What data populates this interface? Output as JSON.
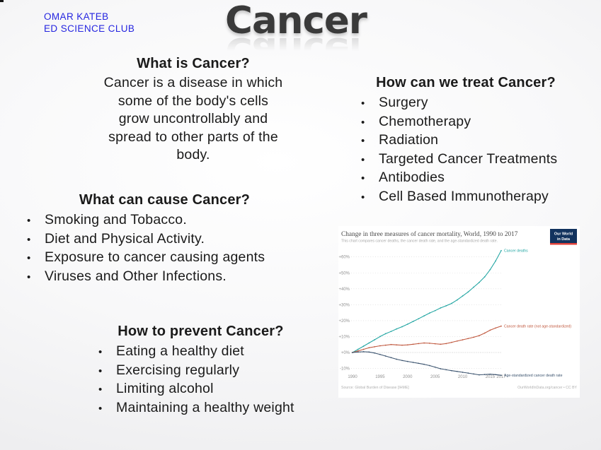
{
  "slide": {
    "club_line1": "OMAR KATEB",
    "club_line2": "ED SCIENCE CLUB",
    "title": "Cancer"
  },
  "sections": {
    "what_is": {
      "heading": "What is Cancer?",
      "body_lines": [
        "Cancer is a disease in which",
        "some of the body's cells",
        "grow uncontrollably and",
        "spread to other parts of the",
        "body."
      ]
    },
    "treat": {
      "heading": "How can we treat Cancer?",
      "items": [
        "Surgery",
        "Chemotherapy",
        "Radiation",
        "Targeted Cancer Treatments",
        "Antibodies",
        "Cell Based Immunotherapy"
      ]
    },
    "cause": {
      "heading": "What can cause Cancer?",
      "items": [
        "Smoking and Tobacco.",
        "Diet and Physical Activity.",
        "Exposure to cancer causing agents",
        "Viruses and Other Infections."
      ]
    },
    "prevent": {
      "heading": "How to prevent Cancer?",
      "items": [
        "Eating a healthy diet",
        "Exercising regularly",
        "Limiting alcohol",
        "Maintaining a healthy weight"
      ]
    }
  },
  "chart_data": {
    "type": "line",
    "title": "Change in three measures of cancer mortality, World, 1990 to 2017",
    "subtitle": "This chart compares cancer deaths, the cancer death rate, and the age-standardized death rate.",
    "logo": {
      "line1": "Our World",
      "line2": "in Data",
      "bg_color": "#12335e",
      "stripe_color": "#e0423a"
    },
    "x": [
      1990,
      1991,
      1992,
      1993,
      1994,
      1995,
      1996,
      1997,
      1998,
      1999,
      2000,
      2001,
      2002,
      2003,
      2004,
      2005,
      2006,
      2007,
      2008,
      2009,
      2010,
      2011,
      2012,
      2013,
      2014,
      2015,
      2016,
      2017
    ],
    "series": [
      {
        "name": "Cancer deaths",
        "color": "#21a5a2",
        "values": [
          0,
          2,
          4,
          6,
          8,
          10,
          11.8,
          13.2,
          14.8,
          16.2,
          17.8,
          19.5,
          21.2,
          23,
          24.8,
          26.3,
          28,
          29.3,
          30.8,
          33,
          35.5,
          38,
          41,
          44,
          47.5,
          52,
          57.5,
          64
        ]
      },
      {
        "name": "Cancer death rate (not age-standardized)",
        "color": "#c0583e",
        "values": [
          0,
          1,
          2,
          3,
          3.6,
          4.2,
          4.6,
          5,
          4.8,
          4.6,
          4.8,
          5.2,
          5.6,
          6,
          5.8,
          5.5,
          5.2,
          5.6,
          6.4,
          7.2,
          8,
          8.8,
          9.6,
          10.6,
          12.2,
          14,
          15.4,
          16.6
        ]
      },
      {
        "name": "Age-standardized cancer death rate",
        "color": "#3d5570",
        "values": [
          0,
          0.3,
          0.5,
          0.3,
          -0.3,
          -1.2,
          -2.2,
          -3.2,
          -4.2,
          -5,
          -5.6,
          -6.2,
          -6.8,
          -7.4,
          -8.2,
          -9.2,
          -10.2,
          -10.8,
          -11.4,
          -11.9,
          -12.4,
          -12.9,
          -13.5,
          -14,
          -13.8,
          -13.6,
          -13.9,
          -14.3
        ]
      }
    ],
    "ylim": [
      -16,
      67
    ],
    "yticks": [
      {
        "value": 60,
        "label": "+60%"
      },
      {
        "value": 50,
        "label": "+50%"
      },
      {
        "value": 40,
        "label": "+40%"
      },
      {
        "value": 30,
        "label": "+30%"
      },
      {
        "value": 20,
        "label": "+20%"
      },
      {
        "value": 10,
        "label": "+10%"
      },
      {
        "value": 0,
        "label": "+0%"
      },
      {
        "value": -10,
        "label": "-10%"
      }
    ],
    "xticks": [
      1990,
      1995,
      2000,
      2005,
      2010,
      2015,
      2017
    ],
    "grid": true,
    "legend_position": "end-of-line labels",
    "source_left": "Source: Global Burden of Disease [IHME]",
    "source_right": "OurWorldInData.org/cancer • CC BY"
  }
}
